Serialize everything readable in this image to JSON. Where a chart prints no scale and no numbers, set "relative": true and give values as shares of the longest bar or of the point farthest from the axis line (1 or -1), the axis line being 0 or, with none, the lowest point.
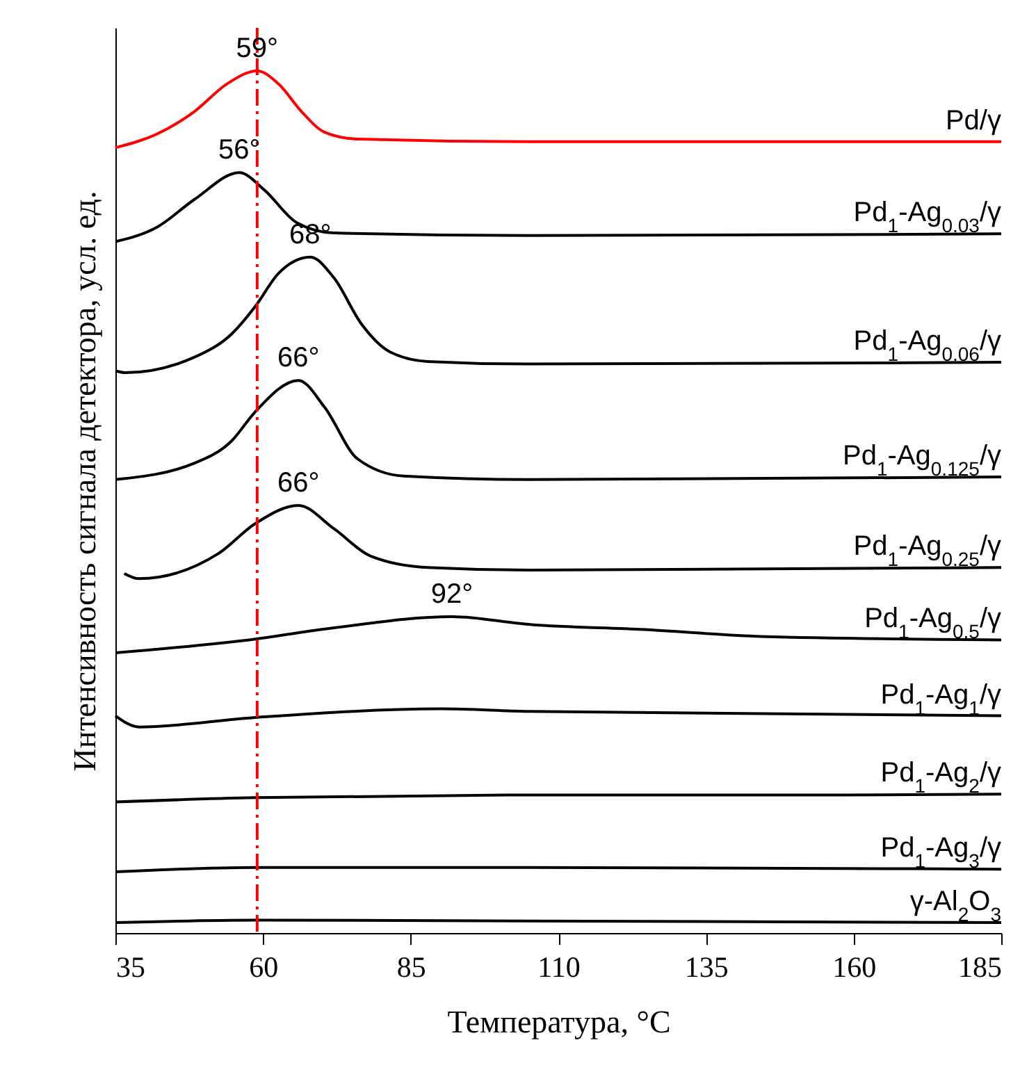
{
  "chart_data": {
    "type": "line",
    "relative": true,
    "xlabel": "Температура, °C",
    "ylabel": "Интенсивность сигнала детектора, усл. ед.",
    "xlim": [
      35,
      185
    ],
    "xticks": [
      35,
      60,
      85,
      110,
      135,
      160,
      185
    ],
    "grid": false,
    "legend": false,
    "tick_labels": "x",
    "series": [
      {
        "name": "Pd/γ",
        "color": "#ff0000",
        "x": [
          35,
          42.1,
          48.4,
          53.9,
          59,
          62.6,
          66.5,
          70.4,
          76,
          105,
          185
        ],
        "values": [
          0.911,
          0.927,
          0.953,
          0.985,
          1,
          0.985,
          0.953,
          0.929,
          0.921,
          0.918,
          0.918
        ]
      },
      {
        "name": "Pd$_{1}$-Ag$_{0.03}$/γ",
        "color": "#000000",
        "x": [
          35,
          42.1,
          48.4,
          56,
          60.2,
          65.7,
          72,
          105,
          185
        ],
        "values": [
          0.802,
          0.819,
          0.851,
          0.882,
          0.862,
          0.824,
          0.812,
          0.809,
          0.811
        ]
      },
      {
        "name": "Pd$_{1}$-Ag$_{0.06}$/γ",
        "color": "#000000",
        "x": [
          35,
          36.7,
          48.4,
          54.7,
          58.7,
          62.6,
          68,
          72,
          76.7,
          81.5,
          87.8,
          105,
          185
        ],
        "values": [
          0.652,
          0.65,
          0.668,
          0.695,
          0.727,
          0.765,
          0.784,
          0.76,
          0.706,
          0.674,
          0.663,
          0.66,
          0.662
        ]
      },
      {
        "name": "Pd$_{1}$-Ag$_{0.125}$/γ",
        "color": "#000000",
        "x": [
          35,
          48.4,
          54.7,
          58.6,
          66,
          70.4,
          76,
          83.8,
          105,
          185
        ],
        "values": [
          0.526,
          0.545,
          0.571,
          0.604,
          0.641,
          0.61,
          0.55,
          0.53,
          0.526,
          0.529
        ]
      },
      {
        "name": "Pd$_{1}$-Ag$_{0.25}$/γ",
        "color": "#000000",
        "x": [
          36.5,
          39,
          52.4,
          58.7,
          66,
          72,
          78.3,
          87.8,
          105,
          185
        ],
        "values": [
          0.417,
          0.411,
          0.44,
          0.475,
          0.496,
          0.469,
          0.437,
          0.424,
          0.421,
          0.424
        ]
      },
      {
        "name": "Pd$_{1}$-Ag$_{0.5}$/γ",
        "color": "#000000",
        "x": [
          35,
          58.7,
          72,
          92,
          105,
          124.6,
          144.3,
          185
        ],
        "values": [
          0.325,
          0.341,
          0.354,
          0.367,
          0.358,
          0.352,
          0.344,
          0.34
        ]
      },
      {
        "name": "Pd$_{1}$-Ag$_{1}$/γ",
        "color": "#000000",
        "x": [
          35,
          39,
          58.7,
          90,
          105,
          185
        ],
        "values": [
          0.252,
          0.239,
          0.25,
          0.26,
          0.257,
          0.252
        ]
      },
      {
        "name": "Pd$_{1}$-Ag$_{2}$/γ",
        "color": "#000000",
        "x": [
          35,
          58.7,
          105,
          145,
          185
        ],
        "values": [
          0.152,
          0.157,
          0.16,
          0.16,
          0.161
        ]
      },
      {
        "name": "Pd$_{1}$-Ag$_{3}$/γ",
        "color": "#000000",
        "x": [
          35,
          58.7,
          105,
          185
        ],
        "values": [
          0.071,
          0.076,
          0.076,
          0.074
        ]
      },
      {
        "name": "γ-Al$_{2}$O$_{3}$",
        "color": "#000000",
        "x": [
          35,
          58.7,
          105,
          185
        ],
        "values": [
          0.012,
          0.015,
          0.014,
          0.012
        ]
      }
    ],
    "ref_lines": [
      {
        "axis": "x",
        "value": 59,
        "color": "#ff0000",
        "line_style": "dashed"
      }
    ],
    "annotations": [
      {
        "text": "59°",
        "x": 59,
        "y": 1
      },
      {
        "text": "56°",
        "x": 56,
        "y": 0.882
      },
      {
        "text": "68°",
        "x": 68,
        "y": 0.784
      },
      {
        "text": "66°",
        "x": 66,
        "y": 0.641
      },
      {
        "text": "66°",
        "x": 66,
        "y": 0.496
      },
      {
        "text": "92°",
        "x": 92,
        "y": 0.367
      }
    ]
  }
}
